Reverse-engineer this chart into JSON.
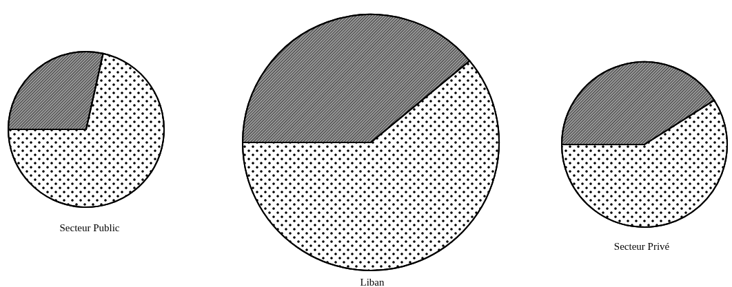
{
  "chart_data": [
    {
      "type": "pie",
      "title": "Secteur Public",
      "categories": [
        null,
        null
      ],
      "values": [
        28.5,
        71.5
      ],
      "colors": [
        "#9a9a9a",
        "#ffffff"
      ]
    },
    {
      "type": "pie",
      "title": "Liban",
      "categories": [
        null,
        null
      ],
      "values": [
        39,
        61
      ],
      "colors": [
        "#9a9a9a",
        "#ffffff"
      ]
    },
    {
      "type": "pie",
      "title": "Secteur Privé",
      "categories": [
        null,
        null
      ],
      "values": [
        41,
        59
      ],
      "colors": [
        "#9a9a9a",
        "#ffffff"
      ]
    }
  ]
}
